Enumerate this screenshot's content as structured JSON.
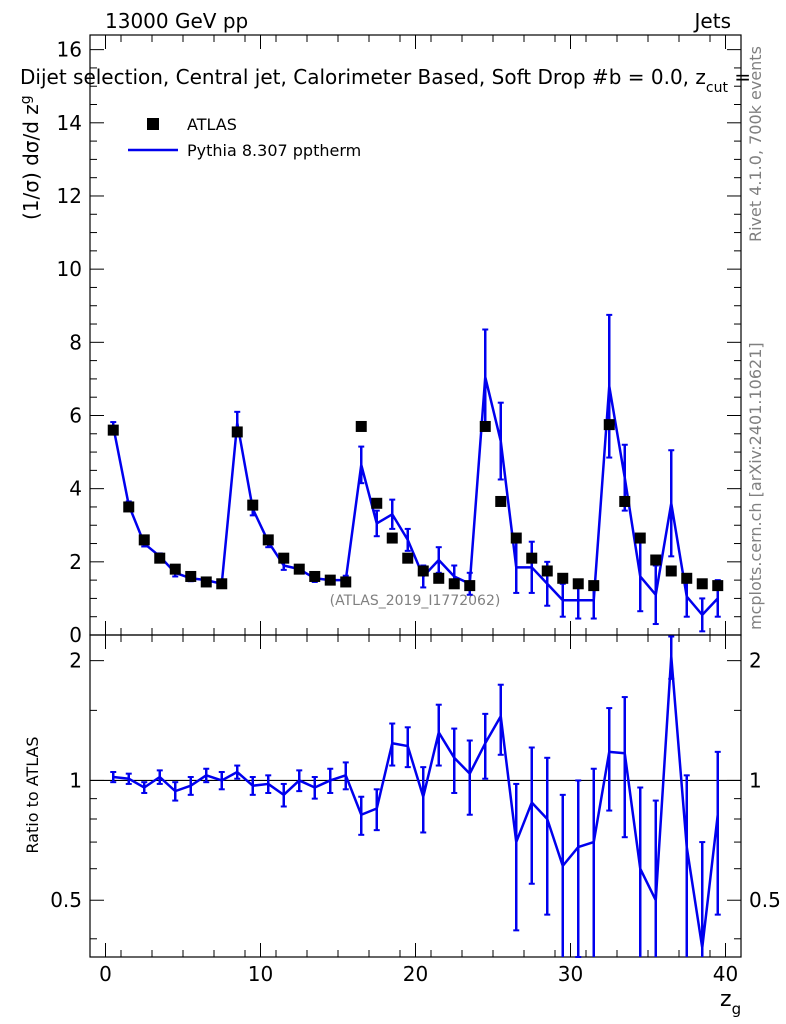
{
  "header": {
    "left": "13000 GeV pp",
    "right": "Jets",
    "title_prefix": "Dijet selection, Central jet, Calorimeter Based, Soft Drop #b = 0.0, z",
    "title_sub": "cut",
    "title_suffix": " ="
  },
  "side": {
    "rivet": "Rivet 4.1.0,  700k events",
    "mcplots": "mcplots.cern.ch [arXiv:2401.10621]"
  },
  "watermark": "(ATLAS_2019_I1772062)",
  "legend": {
    "data": "ATLAS",
    "mc": "Pythia 8.307 pptherm"
  },
  "colors": {
    "mc": "#0000ee",
    "data": "#000000",
    "ref": "#000000"
  },
  "chart_data": [
    {
      "type": "scatter",
      "title": "Dijet selection, Central jet, Calorimeter Based, Soft Drop #b = 0.0, z_cut =",
      "ylabel_main": "(1/σ) dσ/d z",
      "ylabel_sub": "g",
      "xlim": [
        -1,
        41
      ],
      "ylim": [
        0,
        16.4
      ],
      "yticks": [
        0,
        2,
        4,
        6,
        8,
        10,
        12,
        14,
        16
      ],
      "ytick_labels": [
        "0",
        "2",
        "4",
        "6",
        "8",
        "10",
        "12",
        "14",
        "16"
      ],
      "series": [
        {
          "name": "ATLAS",
          "x": [
            0.5,
            1.5,
            2.5,
            3.5,
            4.5,
            5.5,
            6.5,
            7.5,
            8.5,
            9.5,
            10.5,
            11.5,
            12.5,
            13.5,
            14.5,
            15.5,
            16.5,
            17.5,
            18.5,
            19.5,
            20.5,
            21.5,
            22.5,
            23.5,
            24.5,
            25.5,
            26.5,
            27.5,
            28.5,
            29.5,
            30.5,
            31.5,
            32.5,
            33.5,
            34.5,
            35.5,
            36.5,
            37.5,
            38.5,
            39.5
          ],
          "values": [
            5.6,
            3.5,
            2.6,
            2.1,
            1.8,
            1.6,
            1.45,
            1.4,
            5.55,
            3.55,
            2.6,
            2.1,
            1.8,
            1.6,
            1.5,
            1.45,
            5.7,
            3.6,
            2.65,
            2.1,
            1.75,
            1.55,
            1.4,
            1.35,
            5.7,
            3.65,
            2.65,
            2.1,
            1.75,
            1.55,
            1.4,
            1.35,
            5.75,
            3.65,
            2.65,
            2.05,
            1.75,
            1.55,
            1.4,
            1.35
          ]
        },
        {
          "name": "Pythia 8.307 pptherm",
          "x": [
            0.5,
            1.5,
            2.5,
            3.5,
            4.5,
            5.5,
            6.5,
            7.5,
            8.5,
            9.5,
            10.5,
            11.5,
            12.5,
            13.5,
            14.5,
            15.5,
            16.5,
            17.5,
            18.5,
            19.5,
            20.5,
            21.5,
            22.5,
            23.5,
            24.5,
            25.5,
            26.5,
            27.5,
            28.5,
            29.5,
            30.5,
            31.5,
            32.5,
            33.5,
            34.5,
            35.5,
            36.5,
            37.5,
            38.5,
            39.5
          ],
          "values": [
            5.7,
            3.55,
            2.5,
            2.15,
            1.7,
            1.55,
            1.5,
            1.4,
            5.8,
            3.45,
            2.55,
            1.9,
            1.8,
            1.55,
            1.5,
            1.5,
            4.65,
            3.05,
            3.3,
            2.6,
            1.6,
            2.05,
            1.6,
            1.4,
            7.05,
            5.3,
            1.85,
            1.85,
            1.4,
            0.95,
            0.95,
            0.95,
            6.8,
            4.3,
            1.6,
            1.1,
            3.6,
            1.05,
            0.55,
            1.0
          ],
          "err": [
            0.12,
            0.1,
            0.08,
            0.08,
            0.1,
            0.08,
            0.07,
            0.07,
            0.3,
            0.18,
            0.15,
            0.12,
            0.1,
            0.1,
            0.1,
            0.12,
            0.5,
            0.35,
            0.4,
            0.3,
            0.3,
            0.35,
            0.3,
            0.3,
            1.3,
            1.05,
            0.7,
            0.7,
            0.6,
            0.45,
            0.5,
            0.5,
            1.95,
            0.9,
            0.95,
            0.8,
            1.45,
            0.55,
            0.45,
            0.5
          ]
        }
      ]
    },
    {
      "type": "line",
      "ylabel": "Ratio to ATLAS",
      "xlabel_main": "z",
      "xlabel_sub": "g",
      "xlim": [
        -1,
        41
      ],
      "ylim": [
        0.36,
        2.32
      ],
      "yscale": "log",
      "yticks": [
        0.5,
        1,
        2
      ],
      "ytick_labels": [
        "0.5",
        "1",
        "2"
      ],
      "xticks": [
        0,
        10,
        20,
        30,
        40
      ],
      "xtick_labels": [
        "0",
        "10",
        "20",
        "30",
        "40"
      ],
      "series": [
        {
          "name": "Pythia 8.307 pptherm",
          "x": [
            0.5,
            1.5,
            2.5,
            3.5,
            4.5,
            5.5,
            6.5,
            7.5,
            8.5,
            9.5,
            10.5,
            11.5,
            12.5,
            13.5,
            14.5,
            15.5,
            16.5,
            17.5,
            18.5,
            19.5,
            20.5,
            21.5,
            22.5,
            23.5,
            24.5,
            25.5,
            26.5,
            27.5,
            28.5,
            29.5,
            30.5,
            31.5,
            32.5,
            33.5,
            34.5,
            35.5,
            36.5,
            37.5,
            38.5,
            39.5
          ],
          "values": [
            1.02,
            1.01,
            0.96,
            1.02,
            0.94,
            0.97,
            1.03,
            1.0,
            1.05,
            0.97,
            0.98,
            0.92,
            1.0,
            0.96,
            1.0,
            1.03,
            0.82,
            0.85,
            1.24,
            1.22,
            0.91,
            1.32,
            1.14,
            1.04,
            1.24,
            1.45,
            0.7,
            0.88,
            0.8,
            0.61,
            0.68,
            0.7,
            1.18,
            1.17,
            0.6,
            0.5,
            2.05,
            0.68,
            0.38,
            0.82
          ],
          "err": [
            0.03,
            0.03,
            0.03,
            0.04,
            0.05,
            0.05,
            0.04,
            0.05,
            0.04,
            0.05,
            0.05,
            0.06,
            0.06,
            0.06,
            0.07,
            0.08,
            0.09,
            0.1,
            0.15,
            0.14,
            0.17,
            0.23,
            0.21,
            0.22,
            0.23,
            0.29,
            0.28,
            0.33,
            0.34,
            0.31,
            0.32,
            0.37,
            0.34,
            0.45,
            0.36,
            0.39,
            0.25,
            0.35,
            0.32,
            0.36
          ]
        }
      ]
    }
  ]
}
